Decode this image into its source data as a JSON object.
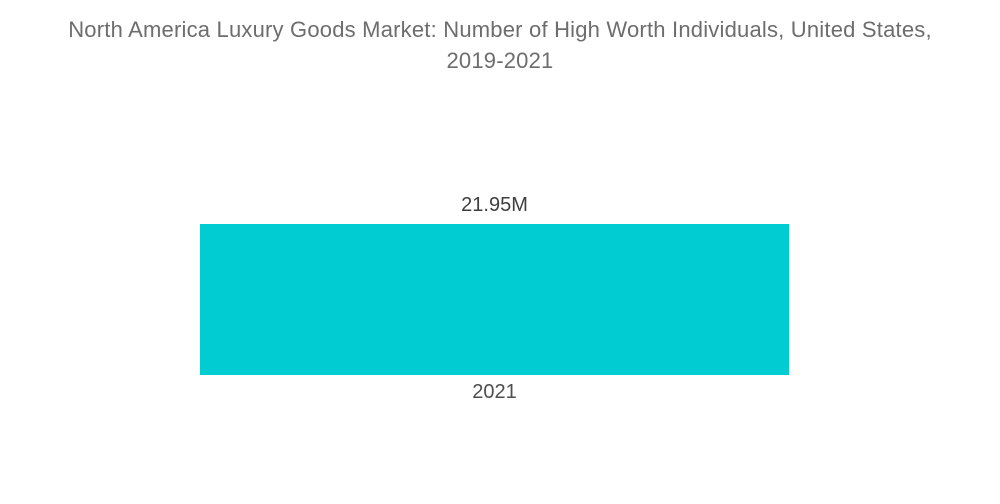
{
  "title": {
    "line1": "North America Luxury Goods Market: Number of High Worth Individuals, United States,",
    "line2": "2019-2021"
  },
  "labels": {
    "value": "21.95M",
    "category": "2021"
  },
  "colors": {
    "bar": "#00ccd1",
    "title_text": "#6d6d6d",
    "value_text": "#3f3f3f",
    "category_text": "#4e4e4e",
    "background": "#ffffff"
  },
  "chart_data": {
    "type": "bar",
    "title": "North America Luxury Goods Market: Number of High Worth Individuals, United States, 2019-2021",
    "categories": [
      "2021"
    ],
    "values": [
      21.95
    ],
    "value_suffix": "M",
    "value_labels": [
      "21.95M"
    ],
    "xlabel": "",
    "ylabel": "",
    "ylim": [
      0,
      21.95
    ],
    "grid": false,
    "legend_position": "none",
    "axes_visible": false,
    "bar_color": "#00ccd1",
    "orientation": "vertical",
    "series_count": 1
  }
}
